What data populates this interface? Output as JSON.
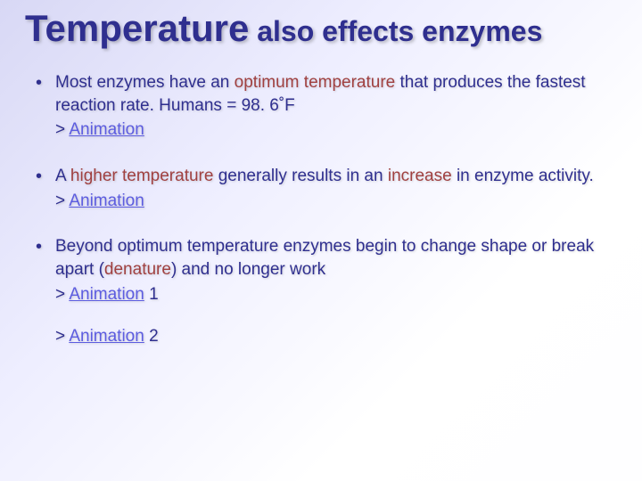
{
  "title": {
    "word_big": "Temperature",
    "rest": " also effects enzymes"
  },
  "colors": {
    "text": "#2f2f8f",
    "key": "#a04040",
    "link": "#5c5ce0",
    "bg_start": "#d8d8f5",
    "bg_end": "#ffffff"
  },
  "fonts": {
    "family": "Comic Sans MS",
    "title_big_pt": 42,
    "title_small_pt": 32,
    "body_pt": 19
  },
  "bullets": [
    {
      "pre1": "Most enzymes have an ",
      "key1": "optimum temperature",
      "post1": " that produces the fastest reaction rate.  Humans = 98. 6˚F",
      "carrot": "> ",
      "link1": "Animation",
      "tail1": ""
    },
    {
      "pre1": "A ",
      "key1": "higher temperature",
      "mid1": " generally results in an ",
      "key2": "increase",
      "post1": " in enzyme activity.",
      "carrot": "> ",
      "link1": "Animation",
      "tail1": ""
    },
    {
      "pre1": "Beyond optimum temperature enzymes begin to change shape or break apart (",
      "key1": "denature",
      "post1": ") and no longer work",
      "carrot": "> ",
      "link1": "Animation",
      "tail1": " 1",
      "carrot2": "> ",
      "link2": "Animation",
      "tail2": " 2"
    }
  ]
}
